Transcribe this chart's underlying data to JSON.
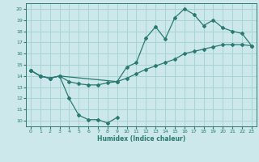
{
  "bg_color": "#cce8ea",
  "grid_color": "#a8d4d6",
  "line_color": "#2a7a72",
  "xlabel": "Humidex (Indice chaleur)",
  "xlim": [
    -0.5,
    23.5
  ],
  "ylim": [
    9.5,
    20.5
  ],
  "xticks": [
    0,
    1,
    2,
    3,
    4,
    5,
    6,
    7,
    8,
    9,
    10,
    11,
    12,
    13,
    14,
    15,
    16,
    17,
    18,
    19,
    20,
    21,
    22,
    23
  ],
  "yticks": [
    10,
    11,
    12,
    13,
    14,
    15,
    16,
    17,
    18,
    19,
    20
  ],
  "line1_x": [
    0,
    1,
    2,
    3,
    4,
    5,
    6,
    7,
    8,
    9
  ],
  "line1_y": [
    14.5,
    14.0,
    13.8,
    14.0,
    12.0,
    10.5,
    10.1,
    10.1,
    9.8,
    10.3
  ],
  "line2_x": [
    0,
    1,
    2,
    3,
    4,
    5,
    6,
    7,
    8,
    9,
    10,
    11,
    12,
    13,
    14,
    15,
    16,
    17,
    18,
    19,
    20,
    21,
    22,
    23
  ],
  "line2_y": [
    14.5,
    14.0,
    13.8,
    14.0,
    13.5,
    13.3,
    13.2,
    13.2,
    13.4,
    13.5,
    13.8,
    14.2,
    14.6,
    14.9,
    15.2,
    15.5,
    16.0,
    16.2,
    16.4,
    16.6,
    16.8,
    16.8,
    16.8,
    16.7
  ],
  "line3_x": [
    0,
    1,
    2,
    3,
    9,
    10,
    11,
    12,
    13,
    14,
    15,
    16,
    17,
    18,
    19,
    20,
    21,
    22,
    23
  ],
  "line3_y": [
    14.5,
    14.0,
    13.8,
    14.0,
    13.5,
    14.8,
    15.2,
    17.4,
    18.4,
    17.3,
    19.2,
    20.0,
    19.5,
    18.5,
    19.0,
    18.3,
    18.0,
    17.8,
    16.7
  ]
}
